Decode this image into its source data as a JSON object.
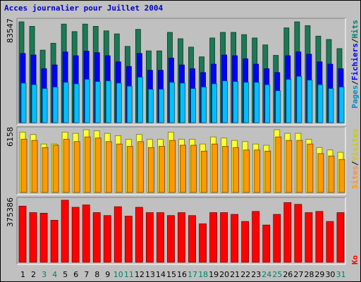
{
  "title": "Acces journalier pour Juillet 2004",
  "colors": {
    "hits": "#1b7a55",
    "files": "#0000ff",
    "pages": "#00c0ff",
    "visits": "#ffff33",
    "sites": "#ff9900",
    "kb": "#ff0000",
    "weekday_label": "#000000",
    "weekend_label": "#00806b",
    "title": "#0000cc"
  },
  "legends": {
    "top": [
      {
        "text": "Pages",
        "color": "#0090c0"
      },
      {
        "text": "/",
        "color": "#000000"
      },
      {
        "text": "Fichiers",
        "color": "#0000ff"
      },
      {
        "text": "/",
        "color": "#000000"
      },
      {
        "text": "Hits",
        "color": "#00806b"
      }
    ],
    "middle": [
      {
        "text": "Sites",
        "color": "#ff9900"
      },
      {
        "text": "/",
        "color": "#000000"
      },
      {
        "text": "Visites",
        "color": "#cccc00"
      }
    ],
    "bottom": [
      {
        "text": "Ko",
        "color": "#ff0000"
      }
    ]
  },
  "chart_data": {
    "type": "bar",
    "title": "Acces journalier pour Juillet 2004",
    "categories": [
      "1",
      "2",
      "3",
      "4",
      "5",
      "6",
      "7",
      "8",
      "9",
      "10",
      "11",
      "12",
      "13",
      "14",
      "15",
      "16",
      "17",
      "18",
      "19",
      "20",
      "21",
      "22",
      "23",
      "24",
      "25",
      "26",
      "27",
      "28",
      "29",
      "30",
      "31"
    ],
    "weekend_days": [
      "3",
      "4",
      "10",
      "11",
      "17",
      "18",
      "24",
      "25",
      "31"
    ],
    "panels": [
      {
        "name": "hits-files-pages",
        "ymax": 83547,
        "ymax_label": "83547",
        "series": [
          {
            "name": "Hits",
            "key": "hits",
            "values": [
              83547,
              79812,
              60115,
              65828,
              81686,
              75456,
              81686,
              79812,
              76081,
              73586,
              63222,
              77326,
              59495,
              59495,
              74836,
              69561,
              62603,
              54538,
              70186,
              74836,
              74836,
              72956,
              70186,
              64432,
              55770,
              78566,
              83547,
              80437,
              71716,
              68945,
              61363
            ]
          },
          {
            "name": "Fichiers",
            "key": "files",
            "values": [
              57356,
              56093,
              44689,
              47849,
              58624,
              55459,
              59251,
              57990,
              55459,
              50402,
              46586,
              57356,
              43413,
              43413,
              53568,
              47849,
              44689,
              41533,
              48474,
              56093,
              55459,
              52936,
              48474,
              44689,
              41533,
              55459,
              58624,
              56728,
              50402,
              48474,
              44689
            ]
          },
          {
            "name": "Pages",
            "key": "pages",
            "values": [
              32774,
              31460,
              28254,
              29473,
              33384,
              32163,
              35899,
              34040,
              34634,
              32774,
              30239,
              37726,
              27648,
              27648,
              33384,
              32774,
              28254,
              29473,
              32163,
              34634,
              34040,
              33384,
              33384,
              31460,
              26428,
              35899,
              38336,
              35256,
              31460,
              28254,
              29473
            ]
          }
        ]
      },
      {
        "name": "visits-sites",
        "ymax": 6158,
        "ymax_label": "6158",
        "series": [
          {
            "name": "Visites",
            "key": "visits",
            "values": [
              5925,
              5690,
              4757,
              4757,
              5925,
              5807,
              6158,
              6042,
              5807,
              5576,
              5226,
              5690,
              5226,
              5226,
              5925,
              5226,
              5226,
              4757,
              5453,
              5343,
              5110,
              4993,
              4757,
              4636,
              6158,
              5807,
              5807,
              5226,
              4410,
              4170,
              3939
            ]
          },
          {
            "name": "Sites",
            "key": "sites",
            "values": [
              5226,
              5110,
              4410,
              4636,
              5226,
              4993,
              5453,
              5343,
              4993,
              4757,
              4527,
              4993,
              4410,
              4527,
              5110,
              4636,
              4636,
              4058,
              4757,
              4527,
              4410,
              4170,
              4170,
              4058,
              5453,
              5110,
              5110,
              4757,
              3818,
              3581,
              3243
            ]
          }
        ]
      },
      {
        "name": "kb",
        "ymax": 375386,
        "ymax_label": "375386",
        "series": [
          {
            "name": "Ko",
            "key": "kb",
            "values": [
              339670,
              300368,
              296790,
              253907,
              375386,
              332523,
              346816,
              300368,
              282492,
              335976,
              278917,
              332523,
              300368,
              300368,
              282492,
              300368,
              282492,
              232444,
              300368,
              300368,
              289638,
              246755,
              307518,
              225292,
              289638,
              361091,
              350392,
              300368,
              307518,
              246755,
              300368
            ]
          }
        ]
      }
    ]
  }
}
